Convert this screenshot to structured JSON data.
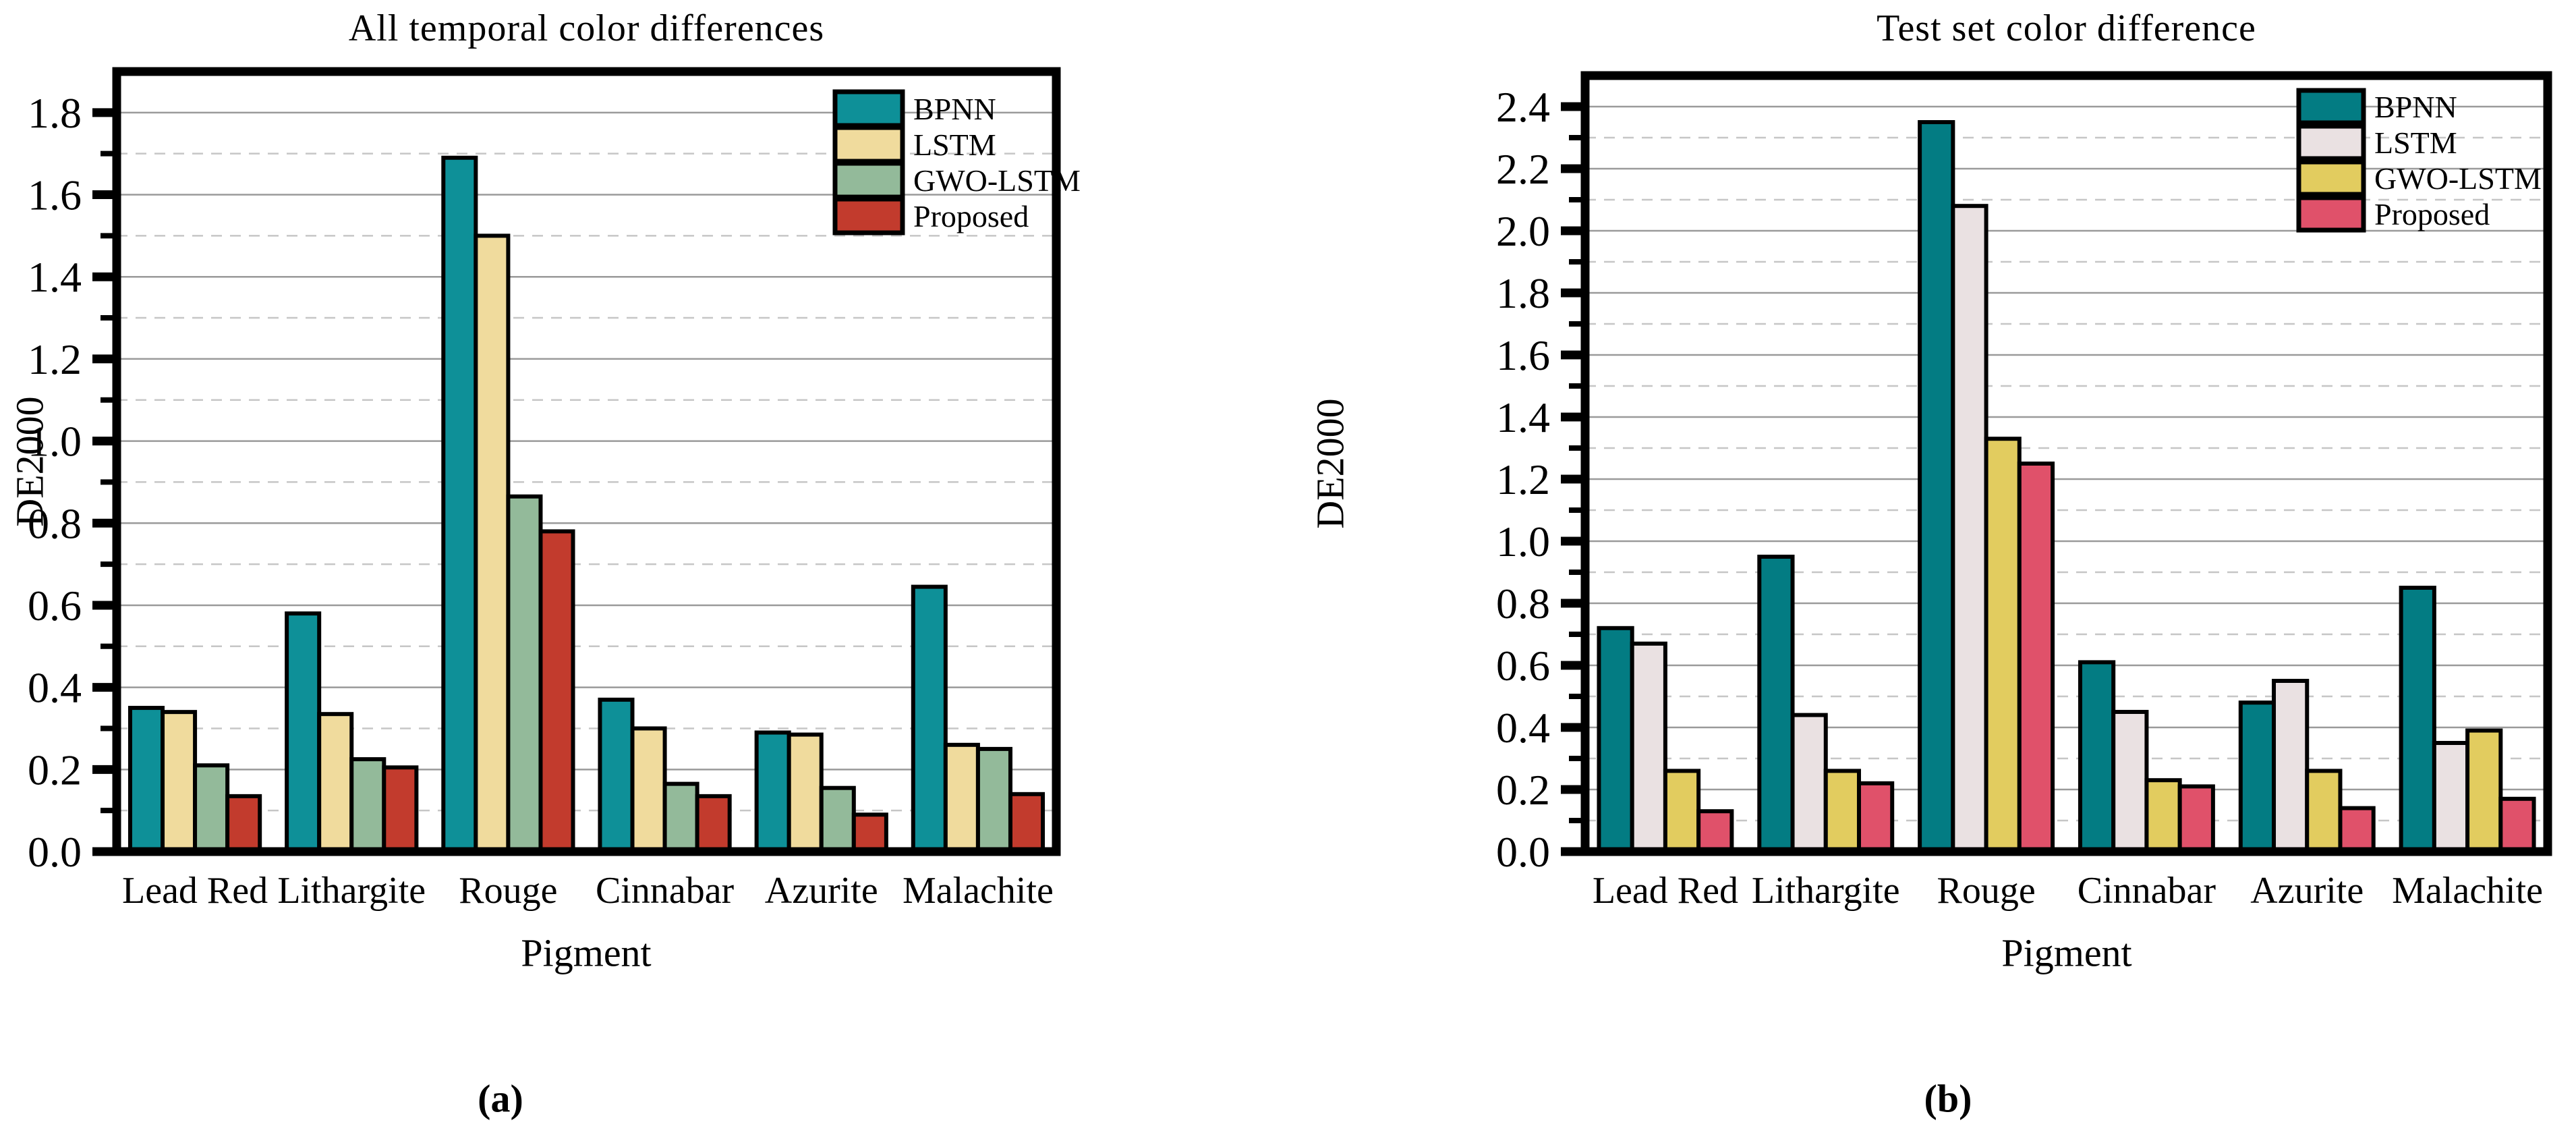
{
  "figure": {
    "background": "#ffffff",
    "text_color": "#000000",
    "spine_color": "#000000",
    "major_grid_color": "#9a9a9a",
    "minor_grid_color": "#c6c6c6",
    "bar_outline_color": "#000000"
  },
  "chart_data": [
    {
      "type": "bar",
      "title": "All temporal color differences",
      "xlabel": "Pigment",
      "ylabel": "DE2000",
      "caption": "(a)",
      "categories": [
        "Lead Red",
        "Lithargite",
        "Rouge",
        "Cinnabar",
        "Azurite",
        "Malachite"
      ],
      "series": [
        {
          "name": "BPNN",
          "color": "#0E9098",
          "values": [
            0.35,
            0.58,
            1.69,
            0.37,
            0.29,
            0.645
          ]
        },
        {
          "name": "LSTM",
          "color": "#F0DB9D",
          "values": [
            0.34,
            0.335,
            1.5,
            0.3,
            0.285,
            0.26
          ]
        },
        {
          "name": "GWO-LSTM",
          "color": "#93BA9A",
          "values": [
            0.21,
            0.225,
            0.865,
            0.165,
            0.155,
            0.25
          ]
        },
        {
          "name": "Proposed",
          "color": "#C23B2D",
          "values": [
            0.135,
            0.205,
            0.78,
            0.135,
            0.09,
            0.14
          ]
        }
      ],
      "ylim": [
        0,
        1.9
      ],
      "ytick_max": 1.8,
      "ytick_step": 0.2,
      "minor_step": 0.1,
      "grid": true,
      "legend_position": "top-right"
    },
    {
      "type": "bar",
      "title": "Test set color difference",
      "xlabel": "Pigment",
      "ylabel": "DE2000",
      "caption": "(b)",
      "categories": [
        "Lead Red",
        "Lithargite",
        "Rouge",
        "Cinnabar",
        "Azurite",
        "Malachite"
      ],
      "series": [
        {
          "name": "BPNN",
          "color": "#037C83",
          "values": [
            0.72,
            0.95,
            2.35,
            0.61,
            0.48,
            0.85
          ]
        },
        {
          "name": "LSTM",
          "color": "#EAE1E2",
          "values": [
            0.67,
            0.44,
            2.08,
            0.45,
            0.55,
            0.35
          ]
        },
        {
          "name": "GWO-LSTM",
          "color": "#E2CC5F",
          "values": [
            0.26,
            0.26,
            1.33,
            0.23,
            0.26,
            0.39
          ]
        },
        {
          "name": "Proposed",
          "color": "#E0516A",
          "values": [
            0.13,
            0.22,
            1.25,
            0.21,
            0.14,
            0.17
          ]
        }
      ],
      "ylim": [
        0,
        2.5
      ],
      "ytick_max": 2.4,
      "ytick_step": 0.2,
      "minor_step": 0.1,
      "grid": true,
      "legend_position": "top-right"
    }
  ]
}
